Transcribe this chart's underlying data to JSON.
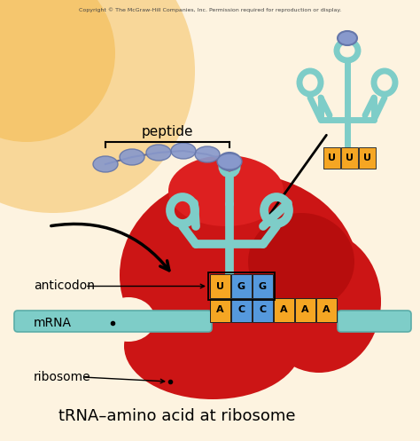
{
  "title": "tRNA–amino acid at ribosome",
  "copyright": "Copyright © The McGraw-Hill Companies, Inc. Permission required for reproduction or display.",
  "bg_cream": "#fdf3e0",
  "bg_orange_glow": "#f5c060",
  "ribosome_color": "#cc1515",
  "ribosome_dark": "#aa0808",
  "trna_color": "#7ecdc8",
  "trna_edge": "#5aada8",
  "mrna_color": "#7ecdc8",
  "peptide_color": "#8899cc",
  "peptide_edge": "#6677aa",
  "U_color": "#f5a623",
  "G_color": "#5599dd",
  "C_color": "#5599dd",
  "A_color": "#f5a623",
  "anticodon_labels": [
    "U",
    "G",
    "G"
  ],
  "mrna_labels": [
    "A",
    "C",
    "C",
    "A",
    "A",
    "A"
  ],
  "label_anticodon": "anticodon",
  "label_mrna": "mRNA",
  "label_ribosome": "ribosome",
  "label_peptide": "peptide"
}
